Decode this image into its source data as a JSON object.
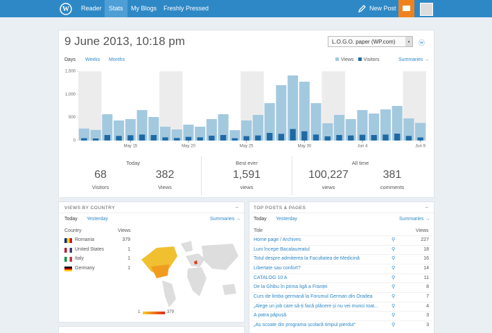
{
  "header": {
    "nav": [
      "Reader",
      "Stats",
      "My Blogs",
      "Freshly Pressed"
    ],
    "new_post": "New Post"
  },
  "title": "9 June 2013, 10:18 pm",
  "blog_select": "L.O.G.O. paper (WP.com)",
  "periods": [
    "Days",
    "Weeks",
    "Months"
  ],
  "summaries": "Summaries →",
  "chart_data": {
    "type": "bar",
    "categories": [
      null,
      null,
      null,
      null,
      "May 15",
      null,
      null,
      null,
      null,
      "May 20",
      null,
      null,
      null,
      null,
      "May 25",
      null,
      null,
      null,
      null,
      "May 30",
      null,
      null,
      null,
      null,
      "Jun 4",
      null,
      null,
      null,
      null,
      "Jun 9"
    ],
    "series": [
      {
        "name": "Views",
        "color": "#a3c9df",
        "values": [
          260,
          230,
          570,
          435,
          465,
          660,
          510,
          300,
          240,
          345,
          300,
          465,
          570,
          225,
          435,
          555,
          810,
          1200,
          1410,
          1275,
          810,
          375,
          555,
          465,
          660,
          585,
          675,
          750,
          480,
          382
        ]
      },
      {
        "name": "Visitors",
        "color": "#1f6aa5",
        "values": [
          50,
          45,
          120,
          100,
          115,
          130,
          120,
          70,
          55,
          80,
          70,
          105,
          120,
          50,
          95,
          110,
          165,
          145,
          250,
          200,
          130,
          90,
          120,
          110,
          125,
          120,
          130,
          150,
          100,
          68
        ]
      }
    ],
    "ylim": [
      0,
      1500
    ],
    "yticks": [
      0,
      500,
      {
        "value": 1000,
        "label": "1,000"
      },
      {
        "value": 1500,
        "label": "1,500"
      }
    ],
    "grid": false
  },
  "summary": {
    "today": {
      "heading": "Today",
      "visitors": "68",
      "visitors_label": "Visitors",
      "views": "382",
      "views_label": "Views"
    },
    "best": {
      "heading": "Best ever",
      "views": "1,591",
      "views_label": "views"
    },
    "all_time": {
      "heading": "All time",
      "views": "100,227",
      "views_label": "views",
      "comments": "381",
      "comments_label": "comments"
    }
  },
  "countries": {
    "heading": "VIEWS BY COUNTRY",
    "collapse": "–",
    "tabs": [
      "Today",
      "Yesterday"
    ],
    "summaries": "Summaries →",
    "columns": [
      "Country",
      "Views"
    ],
    "rows": [
      [
        "Romania",
        "379"
      ],
      [
        "United States",
        "1"
      ],
      [
        "Italy",
        "1"
      ],
      [
        "Germany",
        "1"
      ]
    ],
    "legend": [
      "1",
      "379"
    ]
  },
  "posts": {
    "heading": "TOP POSTS & PAGES",
    "collapse": "–",
    "tabs": [
      "Today",
      "Yesterday"
    ],
    "summaries": "Summaries →",
    "columns": [
      "Title",
      "Views"
    ],
    "rows": [
      [
        "Home page / Archives",
        "227"
      ],
      [
        "Luni începe Bacalaureatul",
        "18"
      ],
      [
        "Totul despre admiterea la Facultatea de Medicină",
        "16"
      ],
      [
        "Libertate sau confort?",
        "14"
      ],
      [
        "CATALOG 10 A",
        "11"
      ],
      [
        "De la Ghibu în prima ligă a Franței",
        "8"
      ],
      [
        "Curs de limba germană la Forumul German din Oradea",
        "7"
      ],
      [
        "„Alege un job care să-ți facă plăcere și nu vei munci toat...",
        "4"
      ],
      [
        "A patra păpușă",
        "3"
      ],
      [
        "„Aș scoate din programa școlară timpul pierdut”",
        "3"
      ]
    ]
  }
}
